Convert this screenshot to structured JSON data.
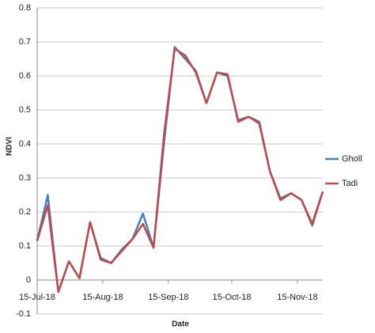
{
  "chart_data": {
    "type": "line",
    "y_label": "NDVI",
    "x_label": "Date",
    "x": [
      "2018-07-15",
      "2018-07-20",
      "2018-07-25",
      "2018-07-30",
      "2018-08-04",
      "2018-08-09",
      "2018-08-14",
      "2018-08-19",
      "2018-08-24",
      "2018-08-29",
      "2018-09-03",
      "2018-09-08",
      "2018-09-13",
      "2018-09-18",
      "2018-09-23",
      "2018-09-28",
      "2018-10-03",
      "2018-10-08",
      "2018-10-13",
      "2018-10-18",
      "2018-10-23",
      "2018-10-28",
      "2018-11-02",
      "2018-11-07",
      "2018-11-12",
      "2018-11-17",
      "2018-11-22",
      "2018-11-27"
    ],
    "series": [
      {
        "name": "Gholl",
        "color": "#4a7ebb",
        "values": [
          0.115,
          0.25,
          -0.035,
          0.055,
          0.005,
          0.17,
          0.065,
          0.05,
          0.09,
          0.12,
          0.195,
          0.095,
          0.405,
          0.685,
          0.65,
          0.615,
          0.52,
          0.61,
          0.6,
          0.47,
          0.48,
          0.465,
          0.32,
          0.24,
          0.255,
          0.235,
          0.16,
          0.26
        ]
      },
      {
        "name": "Tadi",
        "color": "#be4b48",
        "values": [
          0.115,
          0.22,
          -0.035,
          0.055,
          0.005,
          0.17,
          0.06,
          0.05,
          0.085,
          0.12,
          0.165,
          0.095,
          0.43,
          0.68,
          0.66,
          0.61,
          0.52,
          0.61,
          0.605,
          0.465,
          0.48,
          0.46,
          0.32,
          0.235,
          0.255,
          0.235,
          0.165,
          0.26
        ]
      }
    ],
    "xlim": [
      "2018-07-15",
      "2018-11-27"
    ],
    "xticks": [
      {
        "value": "2018-07-15",
        "label": "15-Jul-18"
      },
      {
        "value": "2018-08-15",
        "label": "15-Aug-18"
      },
      {
        "value": "2018-09-15",
        "label": "15-Sep-18"
      },
      {
        "value": "2018-10-15",
        "label": "15-Oct-18"
      },
      {
        "value": "2018-11-15",
        "label": "15-Nov-18"
      }
    ],
    "ylim": [
      -0.1,
      0.8
    ],
    "yticks": [
      -0.1,
      0,
      0.1,
      0.2,
      0.3,
      0.4,
      0.5,
      0.6,
      0.7,
      0.8
    ],
    "grid": true
  }
}
